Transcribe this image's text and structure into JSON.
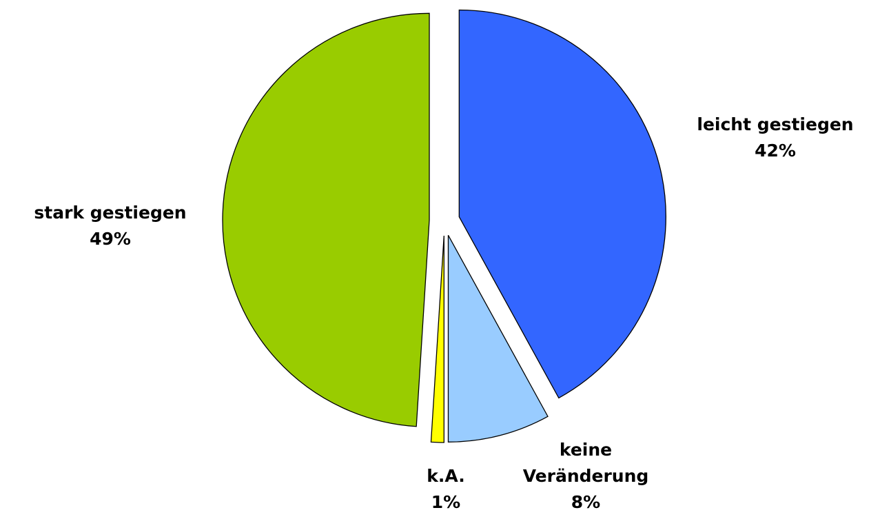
{
  "chart_data": {
    "type": "pie",
    "categories": [
      "leicht gestiegen",
      "keine Veränderung",
      "k.A.",
      "stark gestiegen"
    ],
    "values": [
      42,
      8,
      1,
      49
    ],
    "value_labels": [
      "42%",
      "8%",
      "1%",
      "49%"
    ],
    "colors": [
      "#3366ff",
      "#99ccff",
      "#ffff00",
      "#99cc00"
    ]
  }
}
